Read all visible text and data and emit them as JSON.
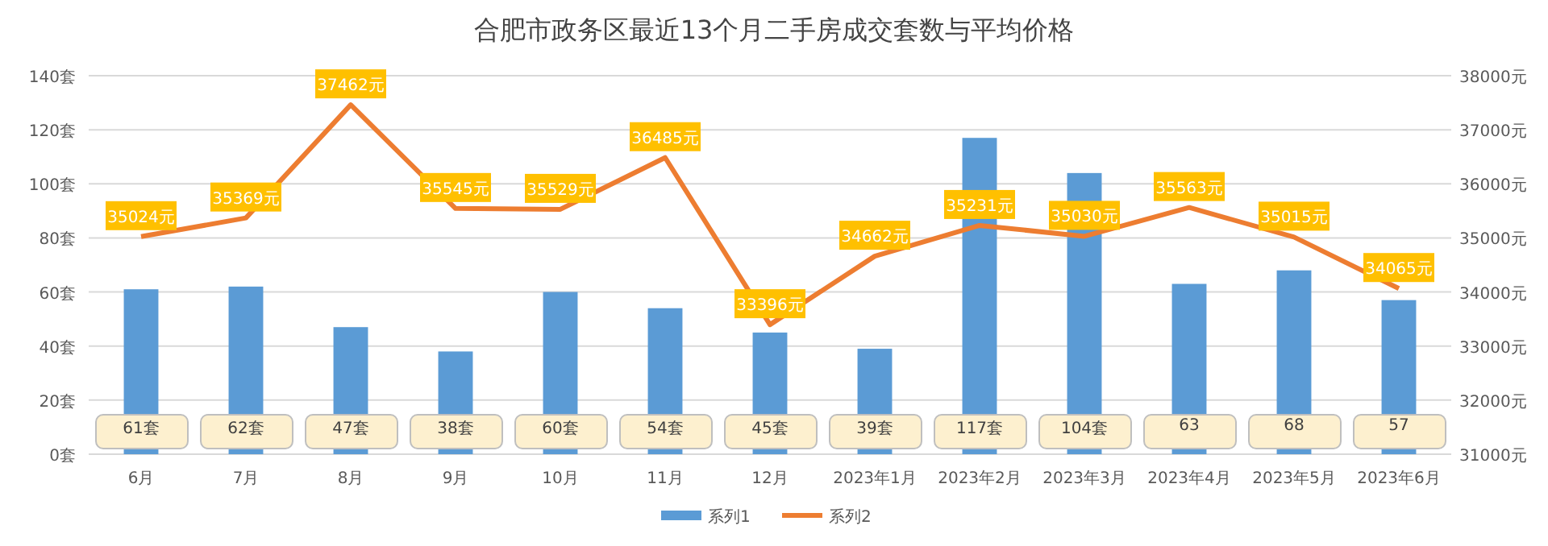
{
  "chart_data": {
    "type": "bar",
    "title": "合肥市政务区最近13个月二手房成交套数与平均价格",
    "categories": [
      "6月",
      "7月",
      "8月",
      "9月",
      "10月",
      "11月",
      "12月",
      "2023年1月",
      "2023年2月",
      "2023年3月",
      "2023年4月",
      "2023年5月",
      "2023年6月"
    ],
    "series": [
      {
        "name": "系列1",
        "color": "#5b9bd5",
        "values": [
          61,
          62,
          47,
          38,
          60,
          54,
          45,
          39,
          117,
          104,
          63,
          68,
          57
        ],
        "value_labels": [
          "61套",
          "62套",
          "47套",
          "38套",
          "60套",
          "54套",
          "45套",
          "39套",
          "117套",
          "104套",
          "63",
          "68",
          "57"
        ]
      },
      {
        "name": "系列2",
        "color": "#ed7d31",
        "type": "line",
        "axis": "y2",
        "values": [
          35024,
          35369,
          37462,
          35545,
          35529,
          36485,
          33396,
          34662,
          35231,
          35030,
          35563,
          35015,
          34065
        ],
        "value_labels": [
          "35024元",
          "35369元",
          "37462元",
          "35545元",
          "35529元",
          "36485元",
          "33396元",
          "34662元",
          "35231元",
          "35030元",
          "35563元",
          "35015元",
          "34065元"
        ]
      }
    ],
    "ylim": [
      0,
      140
    ],
    "yticks": [
      {
        "value": 0,
        "label": "0套"
      },
      {
        "value": 20,
        "label": "20套"
      },
      {
        "value": 40,
        "label": "40套"
      },
      {
        "value": 60,
        "label": "60套"
      },
      {
        "value": 80,
        "label": "80套"
      },
      {
        "value": 100,
        "label": "100套"
      },
      {
        "value": 120,
        "label": "120套"
      },
      {
        "value": 140,
        "label": "140套"
      }
    ],
    "y2lim": [
      31000,
      38000
    ],
    "y2ticks": [
      {
        "value": 31000,
        "label": "31000元"
      },
      {
        "value": 32000,
        "label": "32000元"
      },
      {
        "value": 33000,
        "label": "33000元"
      },
      {
        "value": 34000,
        "label": "34000元"
      },
      {
        "value": 35000,
        "label": "35000元"
      },
      {
        "value": 36000,
        "label": "36000元"
      },
      {
        "value": 37000,
        "label": "37000元"
      },
      {
        "value": 38000,
        "label": "38000元"
      }
    ],
    "grid": "y",
    "legend": "bottom",
    "line_style": "solid"
  }
}
